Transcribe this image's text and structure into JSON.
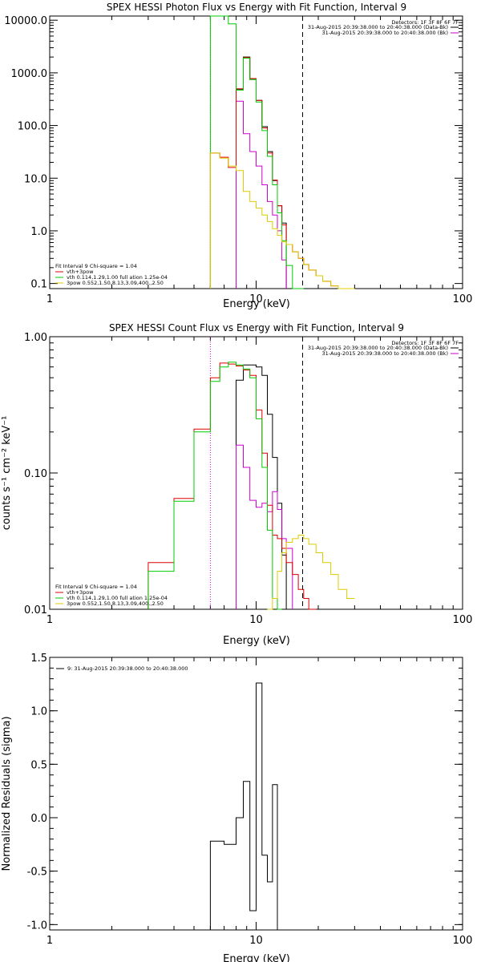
{
  "chart_data": [
    {
      "type": "line",
      "title": "SPEX HESSI Photon Flux vs Energy with Fit Function, Interval 9",
      "xlabel": "Energy (keV)",
      "ylabel": "",
      "xscale": "log",
      "yscale": "log",
      "xlim": [
        1,
        100
      ],
      "ylim": [
        0.08,
        12000
      ],
      "xticks": [
        "1",
        "10",
        "100"
      ],
      "yticks": [
        "10000.0",
        "1000.0",
        "100.0",
        "10.0",
        "1.0",
        "0.1"
      ],
      "ytick_values": [
        10000,
        1000,
        100,
        10,
        1,
        0.1
      ],
      "detectors": "Detectors: 1F 3F 8F 6F 7F",
      "legend_right": [
        {
          "text": "31-Aug-2015 20:39:38.000 to 20:40:38.000 (Data-Bk)",
          "color": "#000000"
        },
        {
          "text": "31-Aug-2015 20:39:38.000 to 20:40:38.000 (Bk)",
          "color": "#cc00cc"
        }
      ],
      "legend_left_header": "Fit Interval 9   Chi-square = 1.04",
      "legend_left": [
        {
          "text": "vth+3pow",
          "color": "#dd0000"
        },
        {
          "text": "vth 0.114,1.29,1.00  full ation 1.25e-04",
          "color": "#00cc00"
        },
        {
          "text": "3pow 0.552,1.50,8.13,3.09,400.,2.50",
          "color": "#ddcc00"
        }
      ],
      "vlines": [
        {
          "x": 6.0,
          "style": "dotted",
          "color": "#cc00cc"
        },
        {
          "x": 16.8,
          "style": "dashed",
          "color": "#000000"
        }
      ],
      "edges": [
        3,
        4,
        5,
        6,
        6.67,
        7.33,
        8,
        8.67,
        9.33,
        10,
        10.67,
        11.33,
        12,
        12.67,
        13.33,
        14,
        15,
        16,
        17,
        18,
        19.5,
        21,
        23,
        25,
        27.5,
        30
      ],
      "series": [
        {
          "name": "Data-Bk",
          "color": "#000000",
          "start": 6,
          "end": 16,
          "values": [
            480,
            2000,
            750,
            300,
            95,
            32,
            9,
            3,
            1.4
          ]
        },
        {
          "name": "Bk",
          "color": "#cc00cc",
          "start": 6,
          "end": 16,
          "values": [
            290,
            70,
            32,
            17,
            7.5,
            3.6,
            2.0,
            1.0,
            0.28
          ]
        },
        {
          "name": "vth+3pow",
          "color": "#dd0000",
          "start": 3,
          "end": 25,
          "values": [
            30,
            25,
            16,
            500,
            1950,
            780,
            300,
            90,
            30,
            9.2,
            3,
            1.3,
            0.55,
            0.4,
            0.3,
            0.23,
            0.18,
            0.14,
            0.11,
            0.09,
            0.08,
            0.07
          ]
        },
        {
          "name": "vth",
          "color": "#00cc00",
          "start": 3,
          "end": 18,
          "values": [
            12000,
            12000,
            8500,
            470,
            1900,
            750,
            280,
            80,
            26,
            7.5,
            2.2,
            0.65,
            0.22,
            0.07,
            0.02
          ]
        },
        {
          "name": "3pow",
          "color": "#ddcc00",
          "start": 3,
          "end": 25,
          "values": [
            30,
            24,
            17,
            14,
            5.6,
            3.6,
            2.7,
            2.0,
            1.5,
            1.1,
            0.82,
            0.62,
            0.55,
            0.4,
            0.3,
            0.23,
            0.18,
            0.14,
            0.11,
            0.09,
            0.08,
            0.07
          ]
        }
      ]
    },
    {
      "type": "line",
      "title": "SPEX HESSI Count Flux vs Energy with Fit Function, Interval 9",
      "xlabel": "Energy (keV)",
      "ylabel": "counts s⁻¹ cm⁻² keV⁻¹",
      "xscale": "log",
      "yscale": "log",
      "xlim": [
        1,
        100
      ],
      "ylim": [
        0.01,
        1.0
      ],
      "xticks": [
        "1",
        "10",
        "100"
      ],
      "yticks": [
        "1.00",
        "0.10",
        "0.01"
      ],
      "ytick_values": [
        1.0,
        0.1,
        0.01
      ],
      "detectors": "Detectors: 1F 3F 8F 6F 7F",
      "legend_right": [
        {
          "text": "31-Aug-2015 20:39:38.000 to 20:40:38.000 (Data-Bk)",
          "color": "#000000"
        },
        {
          "text": "31-Aug-2015 20:39:38.000 to 20:40:38.000 (Bk)",
          "color": "#cc00cc"
        }
      ],
      "legend_left_header": "Fit Interval 9   Chi-square = 1.04",
      "legend_left": [
        {
          "text": "vth+3pow",
          "color": "#dd0000"
        },
        {
          "text": "vth 0.114,1.29,1.00  full ation 1.25e-04",
          "color": "#00cc00"
        },
        {
          "text": "3pow 0.552,1.50,8.13,3.09,400.,2.50",
          "color": "#ddcc00"
        }
      ],
      "vlines": [
        {
          "x": 6.0,
          "style": "dotted",
          "color": "#cc00cc"
        },
        {
          "x": 16.8,
          "style": "dashed",
          "color": "#000000"
        }
      ],
      "edges": [
        3,
        4,
        5,
        6,
        6.67,
        7.33,
        8,
        8.67,
        9.33,
        10,
        10.67,
        11.33,
        12,
        12.67,
        13.33,
        14,
        15,
        16,
        17,
        18,
        19.5,
        21,
        23,
        25,
        27.5,
        30
      ],
      "series": [
        {
          "name": "Data-Bk",
          "color": "#000000",
          "start": 6,
          "end": 16,
          "values": [
            0.48,
            0.62,
            0.62,
            0.6,
            0.52,
            0.27,
            0.13,
            0.06,
            0.025
          ]
        },
        {
          "name": "Bk",
          "color": "#cc00cc",
          "start": 6,
          "end": 16,
          "values": [
            0.16,
            0.11,
            0.063,
            0.056,
            0.06,
            0.052,
            0.073,
            0.054,
            0.033,
            0.028
          ]
        },
        {
          "name": "vth+3pow",
          "color": "#dd0000",
          "start": 0,
          "end": 22,
          "values": [
            0.022,
            0.065,
            0.21,
            0.5,
            0.64,
            0.63,
            0.61,
            0.57,
            0.52,
            0.29,
            0.14,
            0.058,
            0.035,
            0.033,
            0.028,
            0.022,
            0.018,
            0.014,
            0.012,
            0.01
          ]
        },
        {
          "name": "vth",
          "color": "#00cc00",
          "start": 0,
          "end": 17,
          "values": [
            0.019,
            0.062,
            0.2,
            0.47,
            0.6,
            0.65,
            0.62,
            0.58,
            0.5,
            0.25,
            0.11,
            0.038,
            0.012,
            0.009
          ]
        },
        {
          "name": "3pow",
          "color": "#ddcc00",
          "start": 11,
          "end": 25,
          "values": [
            0.006,
            0.012,
            0.019,
            0.026,
            0.031,
            0.033,
            0.035,
            0.033,
            0.03,
            0.026,
            0.022,
            0.018,
            0.014,
            0.012,
            0.01
          ]
        }
      ]
    },
    {
      "type": "line",
      "title": "",
      "xlabel": "Energy (keV)",
      "ylabel": "Normalized Residuals (sigma)",
      "xscale": "log",
      "yscale": "linear",
      "xlim": [
        1,
        100
      ],
      "ylim": [
        -1.05,
        1.5
      ],
      "xticks": [
        "1",
        "10",
        "100"
      ],
      "yticks": [
        "1.5",
        "1.0",
        "0.5",
        "0.0",
        "-0.5",
        "-1.0"
      ],
      "ytick_values": [
        1.5,
        1.0,
        0.5,
        0.0,
        -0.5,
        -1.0
      ],
      "legend": "9: 31-Aug-2015 20:39:38.000 to 20:40:38.000",
      "edges": [
        6,
        7,
        8,
        8.67,
        9.33,
        10,
        10.67,
        11.33,
        12,
        12.67,
        13.33,
        14,
        15,
        16,
        16.8
      ],
      "series": [
        {
          "name": "9",
          "color": "#000000",
          "start": 0,
          "end": 10,
          "values": [
            -0.22,
            -0.25,
            0.0,
            0.34,
            -0.87,
            1.26,
            -0.35,
            -0.6,
            0.31
          ]
        }
      ]
    }
  ]
}
